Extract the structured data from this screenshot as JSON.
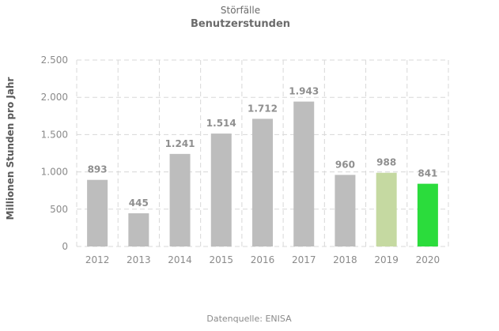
{
  "chart_data": {
    "type": "bar",
    "title": "Störfälle",
    "subtitle": "Benutzerstunden",
    "ylabel": "Millionen  Stunden pro Jahr",
    "xlabel": "",
    "categories": [
      "2012",
      "2013",
      "2014",
      "2015",
      "2016",
      "2017",
      "2018",
      "2019",
      "2020"
    ],
    "values": [
      893,
      445,
      1241,
      1514,
      1712,
      1943,
      960,
      988,
      841
    ],
    "value_labels": [
      "893",
      "445",
      "1.241",
      "1.514",
      "1.712",
      "1.943",
      "960",
      "988",
      "841"
    ],
    "yticks": [
      0,
      500,
      1000,
      1500,
      2000,
      2500
    ],
    "ytick_labels": [
      "0",
      "500",
      "1.000",
      "1.500",
      "2.000",
      "2.500"
    ],
    "ylim": [
      0,
      2500
    ],
    "grid": true,
    "bar_colors": [
      "#bdbdbd",
      "#bdbdbd",
      "#bdbdbd",
      "#bdbdbd",
      "#bdbdbd",
      "#bdbdbd",
      "#bdbdbd",
      "#c5d9a1",
      "#2bdc3c"
    ],
    "source": "Datenquelle:  ENISA"
  }
}
